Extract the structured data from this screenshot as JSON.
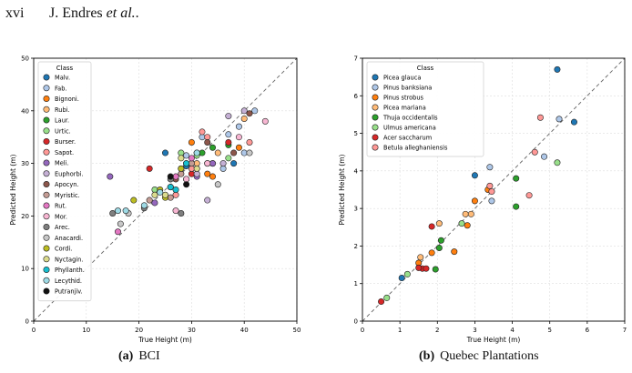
{
  "header": {
    "page_number": "xvi",
    "authors_prefix": "J. Endres ",
    "authors_italic": "et al.",
    "authors_suffix": "."
  },
  "captions": [
    {
      "label": "(a)",
      "text": "BCI"
    },
    {
      "label": "(b)",
      "text": "Quebec Plantations"
    }
  ],
  "chart_data": [
    {
      "type": "scatter",
      "xlabel": "True Height (m)",
      "ylabel": "Predicted Height (m)",
      "xlim": [
        0,
        50
      ],
      "ylim": [
        0,
        50
      ],
      "xticks": [
        0,
        10,
        20,
        30,
        40,
        50
      ],
      "yticks": [
        0,
        10,
        20,
        30,
        40,
        50
      ],
      "grid": true,
      "diagonal": true,
      "legend": {
        "title": "Class",
        "placement": "top-left"
      },
      "series": [
        {
          "name": "Malv.",
          "color": "#1f77b4",
          "points": [
            [
              25,
              32
            ],
            [
              31,
              32
            ],
            [
              38,
              30
            ],
            [
              29,
              29.5
            ]
          ]
        },
        {
          "name": "Fab.",
          "color": "#aec7e8",
          "points": [
            [
              28,
              29
            ],
            [
              32,
              35
            ],
            [
              37,
              35.5
            ],
            [
              39,
              37
            ],
            [
              36,
              29
            ],
            [
              40,
              32
            ],
            [
              29,
              31.5
            ],
            [
              42,
              40
            ]
          ]
        },
        {
          "name": "Bignoni.",
          "color": "#ff7f0e",
          "points": [
            [
              30,
              34
            ],
            [
              33,
              28
            ],
            [
              34,
              27.5
            ],
            [
              39,
              33
            ],
            [
              31,
              29
            ]
          ]
        },
        {
          "name": "Rubi.",
          "color": "#ffbb78",
          "points": [
            [
              31,
              30
            ],
            [
              35,
              32
            ],
            [
              40,
              38.5
            ],
            [
              34,
              30
            ],
            [
              29,
              27
            ]
          ]
        },
        {
          "name": "Laur.",
          "color": "#2ca02c",
          "points": [
            [
              29,
              30
            ],
            [
              34,
              33
            ],
            [
              37,
              33.5
            ],
            [
              32,
              32
            ],
            [
              33,
              30
            ]
          ]
        },
        {
          "name": "Urtic.",
          "color": "#98df8a",
          "points": [
            [
              23,
              25
            ],
            [
              28,
              32
            ],
            [
              31,
              31.5
            ],
            [
              37,
              31
            ]
          ]
        },
        {
          "name": "Burser.",
          "color": "#d62728",
          "points": [
            [
              22,
              29
            ],
            [
              30,
              28
            ],
            [
              26,
              25.5
            ],
            [
              37,
              34
            ]
          ]
        },
        {
          "name": "Sapot.",
          "color": "#ff9896",
          "points": [
            [
              27,
              24
            ],
            [
              30,
              29
            ],
            [
              32,
              36
            ],
            [
              41,
              34
            ],
            [
              33,
              35
            ]
          ]
        },
        {
          "name": "Meli.",
          "color": "#9467bd",
          "points": [
            [
              14.5,
              27.5
            ],
            [
              23,
              22.5
            ],
            [
              31,
              27.5
            ],
            [
              34,
              30
            ]
          ]
        },
        {
          "name": "Euphorbi.",
          "color": "#c5b0d5",
          "points": [
            [
              31,
              28
            ],
            [
              33,
              23
            ],
            [
              37,
              39
            ],
            [
              40,
              40
            ],
            [
              36,
              30
            ]
          ]
        },
        {
          "name": "Apocyn.",
          "color": "#8c564b",
          "points": [
            [
              27,
              27
            ],
            [
              33,
              34
            ],
            [
              38,
              32
            ],
            [
              41,
              39.5
            ]
          ]
        },
        {
          "name": "Myristic.",
          "color": "#c49c94",
          "points": [
            [
              22,
              23
            ],
            [
              26,
              23.5
            ],
            [
              28,
              28
            ],
            [
              30,
              30
            ]
          ]
        },
        {
          "name": "Rut.",
          "color": "#e377c2",
          "points": [
            [
              16,
              17
            ],
            [
              27,
              27.5
            ],
            [
              30,
              31
            ]
          ]
        },
        {
          "name": "Mor.",
          "color": "#f7b6d2",
          "points": [
            [
              27,
              21
            ],
            [
              29,
              27
            ],
            [
              33,
              30
            ],
            [
              39,
              35
            ],
            [
              44,
              38
            ]
          ]
        },
        {
          "name": "Arec.",
          "color": "#7f7f7f",
          "points": [
            [
              15,
              20.5
            ],
            [
              21,
              21.5
            ],
            [
              28,
              20.5
            ],
            [
              26,
              27
            ]
          ]
        },
        {
          "name": "Anacardi.",
          "color": "#c7c7c7",
          "points": [
            [
              16.5,
              18.5
            ],
            [
              18,
              20.5
            ],
            [
              41,
              32
            ],
            [
              35,
              26
            ]
          ]
        },
        {
          "name": "Cordi.",
          "color": "#bcbd22",
          "points": [
            [
              19,
              23
            ],
            [
              24,
              25
            ],
            [
              25,
              23.5
            ],
            [
              28,
              29
            ]
          ]
        },
        {
          "name": "Nyctagin.",
          "color": "#dbdb8d",
          "points": [
            [
              23,
              24
            ],
            [
              25,
              24
            ],
            [
              28,
              31
            ],
            [
              31,
              29
            ]
          ]
        },
        {
          "name": "Phyllanth.",
          "color": "#17becf",
          "points": [
            [
              26,
              25.5
            ],
            [
              27,
              25
            ],
            [
              29,
              30
            ]
          ]
        },
        {
          "name": "Lecythid.",
          "color": "#9edae5",
          "points": [
            [
              16,
              21
            ],
            [
              17.5,
              21
            ],
            [
              21,
              22
            ],
            [
              24,
              24.5
            ],
            [
              31,
              32
            ]
          ]
        },
        {
          "name": "Putranjiv.",
          "color": "#111111",
          "points": [
            [
              26,
              27.5
            ],
            [
              29,
              26
            ]
          ]
        }
      ]
    },
    {
      "type": "scatter",
      "xlabel": "True Height (m)",
      "ylabel": "Predicted Height (m)",
      "xlim": [
        0,
        7
      ],
      "ylim": [
        0,
        7
      ],
      "xticks": [
        0,
        1,
        2,
        3,
        4,
        5,
        6,
        7
      ],
      "yticks": [
        0,
        1,
        2,
        3,
        4,
        5,
        6,
        7
      ],
      "grid": true,
      "diagonal": true,
      "legend": {
        "title": "Class",
        "placement": "top-left"
      },
      "series": [
        {
          "name": "Picea glauca",
          "color": "#1f77b4",
          "points": [
            [
              5.2,
              6.7
            ],
            [
              5.65,
              5.3
            ],
            [
              3.0,
              3.88
            ],
            [
              1.05,
              1.15
            ]
          ]
        },
        {
          "name": "Pinus banksiana",
          "color": "#aec7e8",
          "points": [
            [
              5.25,
              5.38
            ],
            [
              4.85,
              4.38
            ],
            [
              3.4,
              4.1
            ],
            [
              3.45,
              3.2
            ]
          ]
        },
        {
          "name": "Pinus strobus",
          "color": "#ff7f0e",
          "points": [
            [
              2.45,
              1.85
            ],
            [
              3.0,
              3.2
            ],
            [
              2.8,
              2.55
            ],
            [
              1.5,
              1.55
            ],
            [
              1.85,
              1.82
            ],
            [
              3.35,
              3.5
            ]
          ]
        },
        {
          "name": "Picea mariana",
          "color": "#ffbb78",
          "points": [
            [
              2.75,
              2.85
            ],
            [
              1.55,
              1.7
            ],
            [
              2.05,
              2.6
            ],
            [
              2.9,
              2.85
            ]
          ]
        },
        {
          "name": "Thuja occidentalis",
          "color": "#2ca02c",
          "points": [
            [
              2.05,
              1.95
            ],
            [
              2.1,
              2.15
            ],
            [
              1.95,
              1.38
            ],
            [
              4.1,
              3.8
            ],
            [
              4.1,
              3.05
            ]
          ]
        },
        {
          "name": "Ulmus americana",
          "color": "#98df8a",
          "points": [
            [
              5.2,
              4.22
            ],
            [
              2.65,
              2.6
            ],
            [
              1.2,
              1.25
            ],
            [
              0.65,
              0.62
            ]
          ]
        },
        {
          "name": "Acer saccharum",
          "color": "#d62728",
          "points": [
            [
              1.85,
              2.52
            ],
            [
              1.6,
              1.4
            ],
            [
              1.7,
              1.4
            ],
            [
              0.5,
              0.52
            ],
            [
              1.5,
              1.42
            ]
          ]
        },
        {
          "name": "Betula alleghaniensis",
          "color": "#ff9896",
          "points": [
            [
              4.75,
              5.42
            ],
            [
              4.6,
              4.5
            ],
            [
              4.45,
              3.35
            ],
            [
              3.4,
              3.6
            ],
            [
              3.45,
              3.45
            ]
          ]
        }
      ]
    }
  ]
}
